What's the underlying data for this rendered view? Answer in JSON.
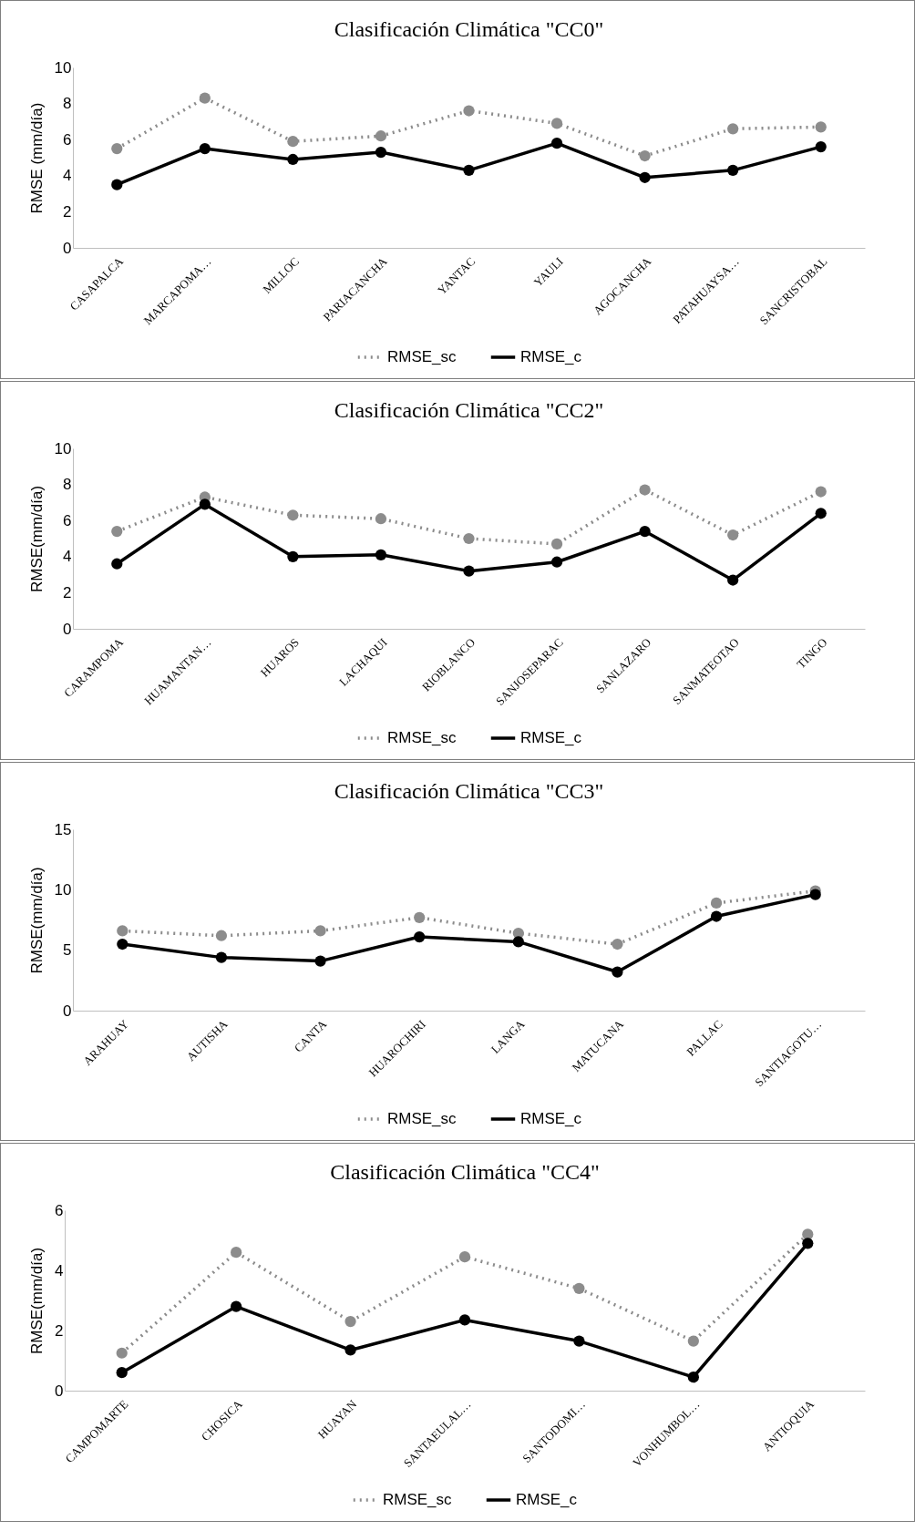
{
  "chart_data": [
    {
      "type": "line",
      "title": "Clasificación Climática \"CC0\"",
      "ylabel": "RMSE (mm/día)",
      "categories": [
        "CASAPALCA",
        "MARCAPOMA…",
        "MILLOC",
        "PARIACANCHA",
        "YANTAC",
        "YAULI",
        "AGOCANCHA",
        "PATAHUAYSA…",
        "SANCRISTOBAL"
      ],
      "ylim": [
        0,
        10
      ],
      "yticks": [
        0,
        2,
        4,
        6,
        8,
        10
      ],
      "legend": "bottom",
      "marker": "circle",
      "series": [
        {
          "name": "RMSE_sc",
          "color": "#8c8c8c",
          "line_style": "dotted",
          "values": [
            5.5,
            8.3,
            5.9,
            6.2,
            7.6,
            6.9,
            5.1,
            6.6,
            6.7
          ]
        },
        {
          "name": "RMSE_c",
          "color": "#000000",
          "line_style": "solid",
          "values": [
            3.5,
            5.5,
            4.9,
            5.3,
            4.3,
            5.8,
            3.9,
            4.3,
            5.6
          ]
        }
      ]
    },
    {
      "type": "line",
      "title": "Clasificación Climática \"CC2\"",
      "ylabel": "RMSE(mm/día)",
      "categories": [
        "CARAMPOMA",
        "HUAMANTAN…",
        "HUAROS",
        "LACHAQUI",
        "RIOBLANCO",
        "SANJOSEPARAC",
        "SANLAZARO",
        "SANMATEOTAO",
        "TINGO"
      ],
      "ylim": [
        0,
        10
      ],
      "yticks": [
        0,
        2,
        4,
        6,
        8,
        10
      ],
      "legend": "bottom",
      "marker": "circle",
      "series": [
        {
          "name": "RMSE_sc",
          "color": "#8c8c8c",
          "line_style": "dotted",
          "values": [
            5.4,
            7.3,
            6.3,
            6.1,
            5.0,
            4.7,
            7.7,
            5.2,
            7.6
          ]
        },
        {
          "name": "RMSE_c",
          "color": "#000000",
          "line_style": "solid",
          "values": [
            3.6,
            6.9,
            4.0,
            4.1,
            3.2,
            3.7,
            5.4,
            2.7,
            6.4
          ]
        }
      ]
    },
    {
      "type": "line",
      "title": "Clasificación Climática \"CC3\"",
      "ylabel": "RMSE(mm/día)",
      "categories": [
        "ARAHUAY",
        "AUTISHA",
        "CANTA",
        "HUAROCHIRI",
        "LANGA",
        "MATUCANA",
        "PALLAC",
        "SANTIAGOTU…"
      ],
      "ylim": [
        0,
        15
      ],
      "yticks": [
        0,
        5,
        10,
        15
      ],
      "legend": "bottom",
      "marker": "circle",
      "series": [
        {
          "name": "RMSE_sc",
          "color": "#8c8c8c",
          "line_style": "dotted",
          "values": [
            6.6,
            6.2,
            6.6,
            7.7,
            6.4,
            5.5,
            8.9,
            9.9
          ]
        },
        {
          "name": "RMSE_c",
          "color": "#000000",
          "line_style": "solid",
          "values": [
            5.5,
            4.4,
            4.1,
            6.1,
            5.7,
            3.2,
            7.8,
            9.6
          ]
        }
      ]
    },
    {
      "type": "line",
      "title": "Clasificación Climática \"CC4\"",
      "ylabel": "RMSE(mm/día)",
      "categories": [
        "CAMPOMARTE",
        "CHOSICA",
        "HUAYAN",
        "SANTAEULAL…",
        "SANTODOMI…",
        "VONHUMBOL…",
        "ANTIOQUIA"
      ],
      "ylim": [
        0,
        6
      ],
      "yticks": [
        0,
        2,
        4,
        6
      ],
      "legend": "bottom",
      "marker": "circle",
      "series": [
        {
          "name": "RMSE_sc",
          "color": "#8c8c8c",
          "line_style": "dotted",
          "values": [
            1.25,
            4.6,
            2.3,
            4.45,
            3.4,
            1.65,
            5.2
          ]
        },
        {
          "name": "RMSE_c",
          "color": "#000000",
          "line_style": "solid",
          "values": [
            0.6,
            2.8,
            1.35,
            2.35,
            1.65,
            0.45,
            4.9
          ]
        }
      ]
    }
  ]
}
